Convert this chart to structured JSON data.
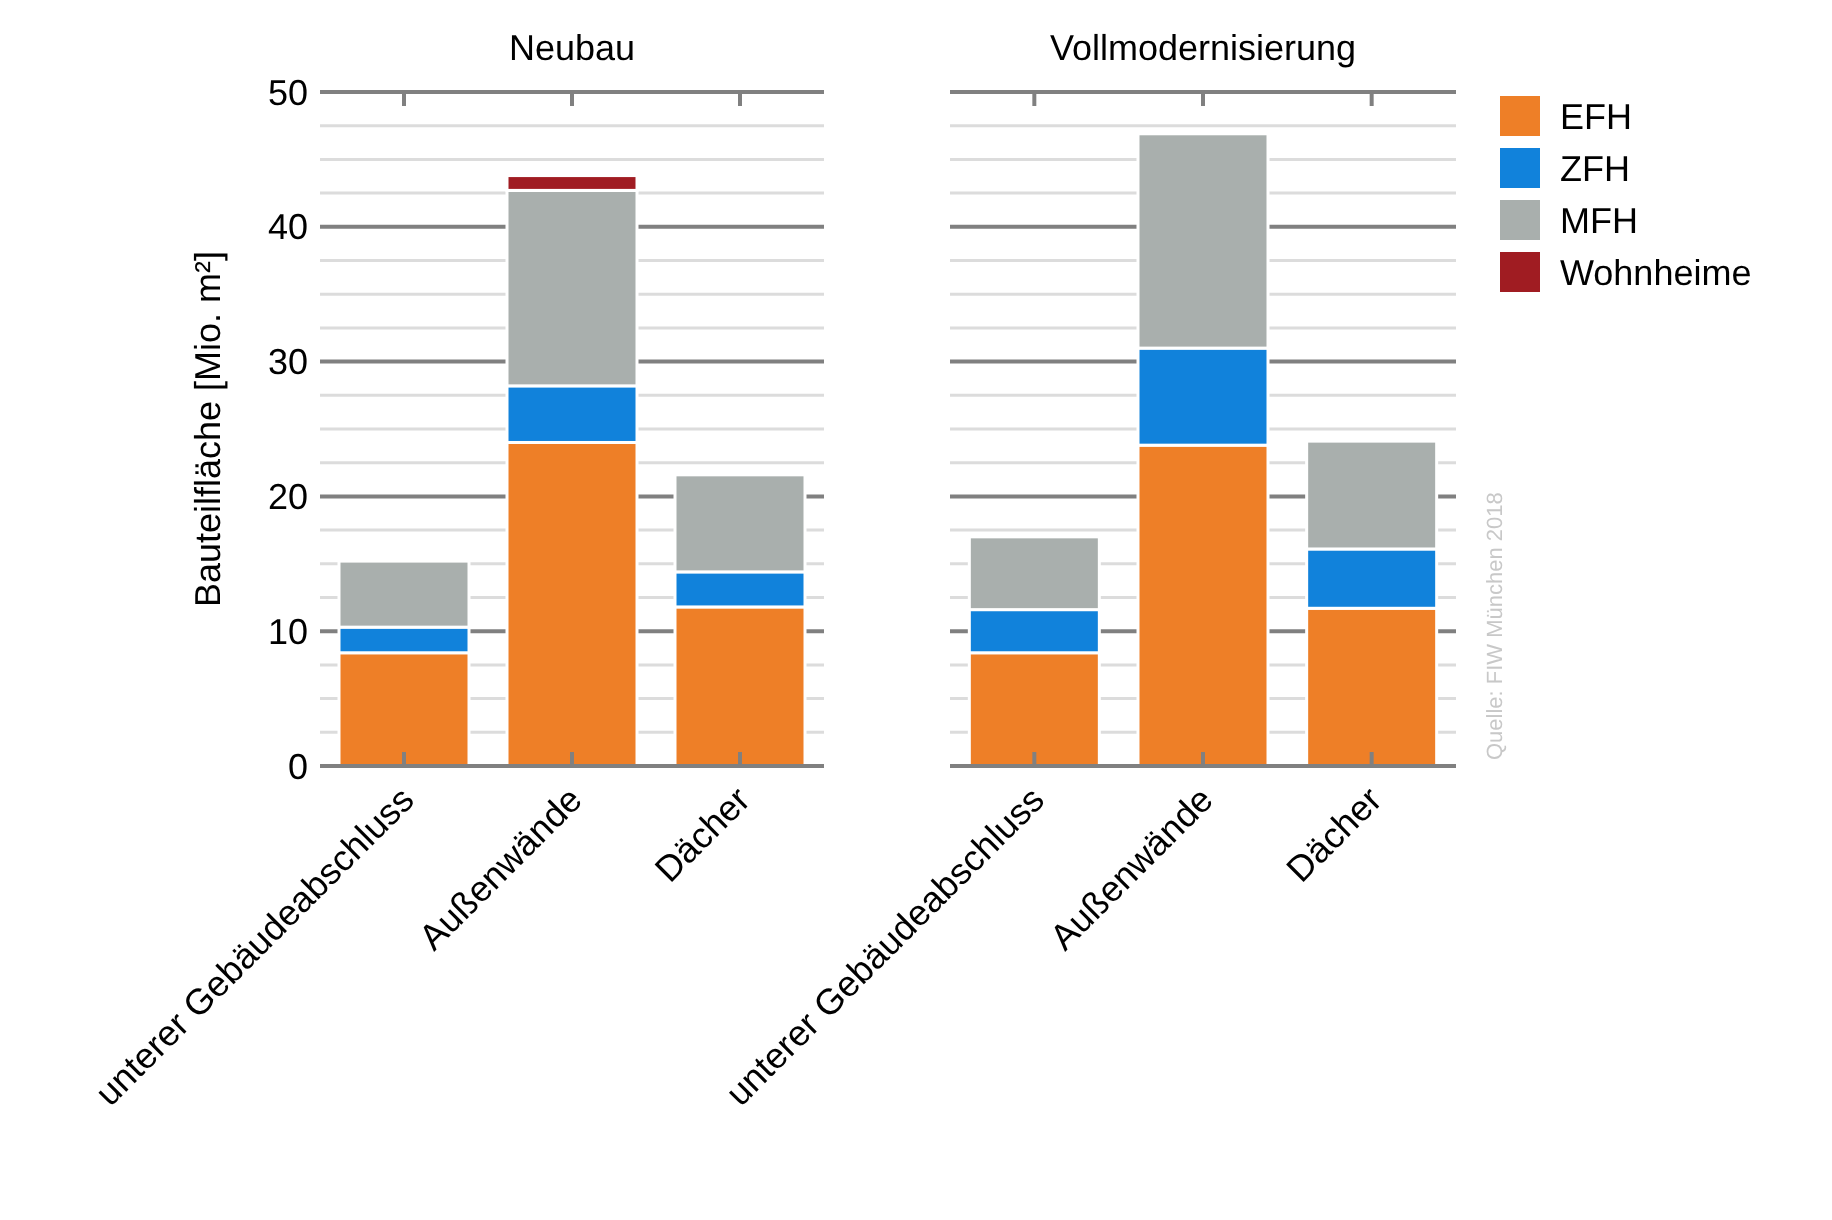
{
  "chart_data": [
    {
      "type": "bar",
      "title": "Neubau",
      "ylabel": "Bauteilfläche [Mio. m²]",
      "stacked": true,
      "categories": [
        "unterer Gebäudeabschluss",
        "Außenwände",
        "Dächer"
      ],
      "series": [
        {
          "color": "#ee7f27",
          "values": [
            8.4,
            24.0,
            11.8
          ]
        },
        {
          "color": "#1182db",
          "values": [
            1.9,
            4.2,
            2.6
          ]
        },
        {
          "color": "#a9afad",
          "values": [
            4.9,
            14.5,
            7.2
          ]
        },
        {
          "color": "#a01c22",
          "values": [
            null,
            1.1,
            null
          ]
        }
      ],
      "ylim": [
        0,
        50
      ],
      "yticks": [
        0,
        {
          "value": 2.5,
          "label": null
        },
        {
          "value": 5,
          "label": null
        },
        {
          "value": 7.5,
          "label": null
        },
        10,
        {
          "value": 12.5,
          "label": null
        },
        {
          "value": 15,
          "label": null
        },
        {
          "value": 17.5,
          "label": null
        },
        20,
        {
          "value": 22.5,
          "label": null
        },
        {
          "value": 25,
          "label": null
        },
        {
          "value": 27.5,
          "label": null
        },
        30,
        {
          "value": 32.5,
          "label": null
        },
        {
          "value": 35,
          "label": null
        },
        {
          "value": 37.5,
          "label": null
        },
        40,
        {
          "value": 42.5,
          "label": null
        },
        {
          "value": 45,
          "label": null
        },
        {
          "value": 47.5,
          "label": null
        },
        50
      ],
      "grid": "y"
    },
    {
      "type": "bar",
      "title": "Vollmodernisierung",
      "stacked": true,
      "categories": [
        "unterer Gebäudeabschluss",
        "Außenwände",
        "Dächer"
      ],
      "series": [
        {
          "name": "EFH",
          "color": "#ee7f27",
          "values": [
            8.4,
            23.8,
            11.7
          ]
        },
        {
          "name": "ZFH",
          "color": "#1182db",
          "values": [
            3.2,
            7.2,
            4.4
          ]
        },
        {
          "name": "MFH",
          "color": "#a9afad",
          "values": [
            5.4,
            15.9,
            8.0
          ]
        },
        {
          "name": "Wohnheime",
          "color": "#a01c22",
          "values": [
            null,
            null,
            null
          ]
        }
      ],
      "ylim": [
        0,
        50
      ],
      "yticks": [
        0,
        {
          "value": 2.5,
          "label": null
        },
        {
          "value": 5,
          "label": null
        },
        {
          "value": 7.5,
          "label": null
        },
        10,
        {
          "value": 12.5,
          "label": null
        },
        {
          "value": 15,
          "label": null
        },
        {
          "value": 17.5,
          "label": null
        },
        20,
        {
          "value": 22.5,
          "label": null
        },
        {
          "value": 25,
          "label": null
        },
        {
          "value": 27.5,
          "label": null
        },
        30,
        {
          "value": 32.5,
          "label": null
        },
        {
          "value": 35,
          "label": null
        },
        {
          "value": 37.5,
          "label": null
        },
        40,
        {
          "value": 42.5,
          "label": null
        },
        {
          "value": 45,
          "label": null
        },
        {
          "value": 47.5,
          "label": null
        },
        50
      ],
      "tick_labels": "x",
      "grid": "y",
      "legend": "right",
      "annotations": [
        "Quelle: FIW München 2018"
      ]
    }
  ]
}
